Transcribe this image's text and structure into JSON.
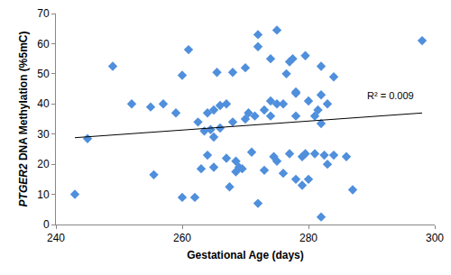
{
  "chart_data": {
    "type": "scatter",
    "xlabel": "Gestational Age (days)",
    "ylabel": "PTGER2 DNA Methylation (%5mC)",
    "color": "#4f8fdc",
    "marker": "diamond",
    "x": [
      243,
      245,
      249,
      252,
      255,
      255.5,
      257,
      259,
      260,
      260,
      261,
      262,
      262.5,
      263,
      263.5,
      264,
      264,
      264.5,
      265,
      265,
      265,
      265.5,
      266,
      266,
      267,
      267,
      267.5,
      268,
      268,
      268.5,
      268.5,
      269,
      269.5,
      270,
      270,
      270.5,
      271,
      271.5,
      272,
      272,
      272,
      273,
      273,
      274,
      274,
      274,
      274.5,
      275,
      275,
      275,
      276,
      276,
      276.5,
      277,
      277,
      277.5,
      278,
      278,
      278,
      278,
      279,
      279,
      279.5,
      279.5,
      280,
      280,
      281,
      281,
      281.5,
      282,
      282,
      282,
      282,
      282.5,
      283,
      283,
      284,
      284,
      286,
      287,
      298
    ],
    "values": [
      10,
      28.5,
      52.5,
      40,
      39,
      16.5,
      40,
      37,
      49.5,
      9,
      58,
      9,
      34,
      18.5,
      31,
      37,
      23,
      31.5,
      38,
      19,
      29,
      50.5,
      39.5,
      32,
      40,
      22,
      12.5,
      50.5,
      34,
      17.5,
      21,
      19,
      18.5,
      52,
      35,
      37,
      24,
      36,
      63,
      59,
      7,
      38,
      18,
      55,
      41,
      36,
      22.5,
      64.5,
      40,
      21,
      17,
      40,
      50,
      54,
      23.5,
      55,
      15,
      43.5,
      36,
      44,
      22.5,
      13,
      56,
      23.5,
      41,
      15,
      36,
      23.5,
      38,
      52.5,
      43,
      33.5,
      2.5,
      23,
      40,
      20,
      49,
      23,
      22.5,
      11.5,
      61
    ],
    "trendline": {
      "x": [
        243,
        298
      ],
      "values": [
        28.8,
        37.0
      ],
      "color": "#000000"
    },
    "annotations": [
      {
        "text": "R² = 0.009",
        "x": 293,
        "y": 40.5
      }
    ],
    "xlim": [
      240,
      300
    ],
    "xticks": [
      240,
      260,
      280,
      300
    ],
    "ylim": [
      0,
      70
    ],
    "yticks": [
      0,
      10,
      20,
      30,
      40,
      50,
      60,
      70
    ],
    "grid": false
  }
}
